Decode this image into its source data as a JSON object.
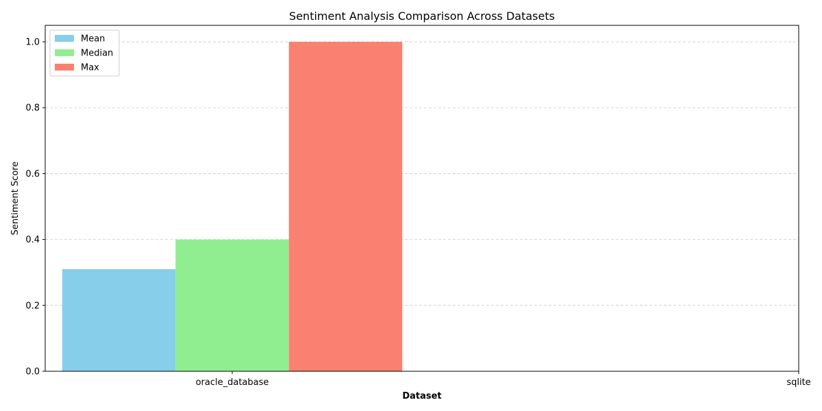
{
  "chart_data": {
    "type": "bar",
    "title": "Sentiment Analysis Comparison Across Datasets",
    "xlabel": "Dataset",
    "ylabel": "Sentiment Score",
    "categories": [
      "oracle_database",
      "sqlite"
    ],
    "series": [
      {
        "name": "Mean",
        "color": "#87ceeb",
        "values": [
          0.31,
          null
        ]
      },
      {
        "name": "Median",
        "color": "#90ee90",
        "values": [
          0.4,
          null
        ]
      },
      {
        "name": "Max",
        "color": "#fa8072",
        "values": [
          1.0,
          null
        ]
      }
    ],
    "ylim": [
      0,
      1.05
    ],
    "yticks": [
      "0.0",
      "0.2",
      "0.4",
      "0.6",
      "0.8",
      "1.0"
    ],
    "grid": "y-dashed",
    "legend_position": "top-left"
  }
}
